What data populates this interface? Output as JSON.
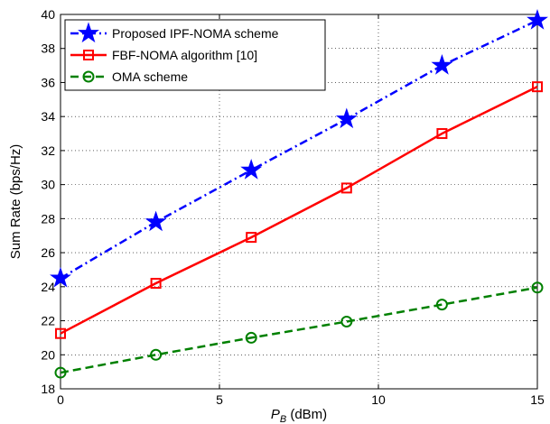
{
  "chart_data": {
    "type": "line",
    "title": "",
    "xlabel_main": "P",
    "xlabel_sub": "B",
    "xlabel_unit": " (dBm)",
    "ylabel": "Sum Rate (bps/Hz)",
    "xlim": [
      0,
      15
    ],
    "ylim": [
      18,
      40
    ],
    "xticks": [
      0,
      5,
      10,
      15
    ],
    "yticks": [
      18,
      20,
      22,
      24,
      26,
      28,
      30,
      32,
      34,
      36,
      38,
      40
    ],
    "grid": true,
    "legend_position": "top-left",
    "x": [
      0,
      3,
      6,
      9,
      12,
      15
    ],
    "series": [
      {
        "name": "Proposed IPF-NOMA scheme",
        "values": [
          24.5,
          27.8,
          30.85,
          33.85,
          37.0,
          39.65
        ],
        "color": "#0000ff",
        "marker": "star",
        "dash": "dash-dot"
      },
      {
        "name": "FBF-NOMA algorithm [10]",
        "values": [
          21.25,
          24.2,
          26.9,
          29.8,
          33.0,
          35.75
        ],
        "color": "#ff0000",
        "marker": "square",
        "dash": "solid"
      },
      {
        "name": "OMA scheme",
        "values": [
          18.95,
          20.0,
          21.0,
          21.95,
          22.95,
          23.95
        ],
        "color": "#008000",
        "marker": "circle",
        "dash": "dashed"
      }
    ]
  }
}
